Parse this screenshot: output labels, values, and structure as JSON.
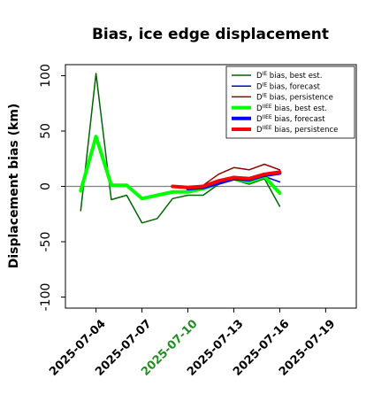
{
  "chart_data": {
    "type": "line",
    "title": "Bias, ice edge displacement",
    "xlabel": "",
    "ylabel": "Displacement bias (km)",
    "xlim": [
      "2025-07-02",
      "2025-07-21"
    ],
    "ylim": [
      -110,
      110
    ],
    "grid": false,
    "legend_position": "top-right",
    "zero_line": true,
    "x_ticks": [
      "2025-07-04",
      "2025-07-07",
      "2025-07-10",
      "2025-07-13",
      "2025-07-16",
      "2025-07-19"
    ],
    "x_tick_colors": [
      "#000000",
      "#000000",
      "#228b22",
      "#000000",
      "#000000",
      "#000000"
    ],
    "y_ticks": [
      100,
      50,
      0,
      -50,
      -100
    ],
    "series": [
      {
        "name": "D^IE bias, best est.",
        "label_base": "D",
        "label_sup": "IE",
        "label_rest": " bias, best est.",
        "color": "#006400",
        "width": 1.5,
        "x": [
          "2025-07-03",
          "2025-07-04",
          "2025-07-05",
          "2025-07-06",
          "2025-07-07",
          "2025-07-08",
          "2025-07-09",
          "2025-07-10",
          "2025-07-11",
          "2025-07-12",
          "2025-07-13",
          "2025-07-14",
          "2025-07-15",
          "2025-07-16"
        ],
        "y": [
          -22,
          102,
          -12,
          -8,
          -33,
          -29,
          -11,
          -8,
          -8,
          2,
          6,
          2,
          7,
          -18
        ]
      },
      {
        "name": "D^IE bias, forecast",
        "label_base": "D",
        "label_sup": "IE",
        "label_rest": " bias, forecast",
        "color": "#0000cd",
        "width": 1.5,
        "x": [
          "2025-07-10",
          "2025-07-11",
          "2025-07-12",
          "2025-07-13",
          "2025-07-14",
          "2025-07-15",
          "2025-07-16"
        ],
        "y": [
          -4,
          -3,
          2,
          6,
          5,
          9,
          4
        ]
      },
      {
        "name": "D^IE bias, persistence",
        "label_base": "D",
        "label_sup": "IE",
        "label_rest": " bias, persistence",
        "color": "#8b0000",
        "width": 1.5,
        "x": [
          "2025-07-09",
          "2025-07-10",
          "2025-07-11",
          "2025-07-12",
          "2025-07-13",
          "2025-07-14",
          "2025-07-15",
          "2025-07-16"
        ],
        "y": [
          0,
          -1,
          1,
          11,
          17,
          15,
          20,
          15
        ]
      },
      {
        "name": "D^IIEE bias, best est.",
        "label_base": "D",
        "label_sup": "IIEE",
        "label_rest": " bias, best est.",
        "color": "#00ff00",
        "width": 4,
        "x": [
          "2025-07-03",
          "2025-07-04",
          "2025-07-05",
          "2025-07-06",
          "2025-07-07",
          "2025-07-08",
          "2025-07-09",
          "2025-07-10",
          "2025-07-11",
          "2025-07-12",
          "2025-07-13",
          "2025-07-14",
          "2025-07-15",
          "2025-07-16"
        ],
        "y": [
          -4,
          45,
          1,
          1,
          -11,
          -8,
          -5,
          -5,
          -2,
          3,
          7,
          4,
          9,
          -6
        ]
      },
      {
        "name": "D^IIEE bias, forecast",
        "label_base": "D",
        "label_sup": "IIEE",
        "label_rest": " bias, forecast",
        "color": "#0000ff",
        "width": 4,
        "x": [
          "2025-07-10",
          "2025-07-11",
          "2025-07-12",
          "2025-07-13",
          "2025-07-14",
          "2025-07-15",
          "2025-07-16"
        ],
        "y": [
          -2,
          -1,
          3,
          7,
          6,
          10,
          12
        ]
      },
      {
        "name": "D^IIEE bias, persistence",
        "label_base": "D",
        "label_sup": "IIEE",
        "label_rest": " bias, persistence",
        "color": "#ff0000",
        "width": 4,
        "x": [
          "2025-07-09",
          "2025-07-10",
          "2025-07-11",
          "2025-07-12",
          "2025-07-13",
          "2025-07-14",
          "2025-07-15",
          "2025-07-16"
        ],
        "y": [
          0,
          -1,
          0,
          5,
          8,
          7,
          11,
          13
        ]
      }
    ]
  }
}
